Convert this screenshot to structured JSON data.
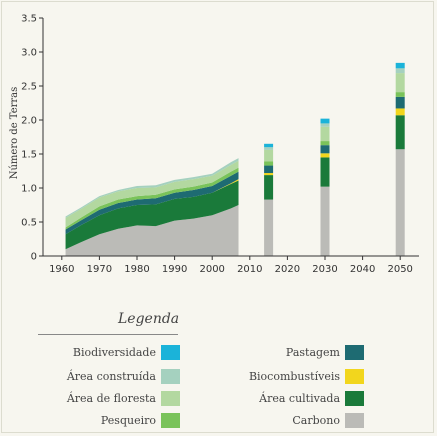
{
  "chart_data": {
    "type": "area",
    "title": "",
    "xlabel": "",
    "ylabel": "Número de Terras",
    "xlim": [
      1955,
      2055
    ],
    "ylim": [
      0,
      3.5
    ],
    "x_ticks": [
      "1960",
      "1970",
      "1980",
      "1990",
      "2000",
      "2010",
      "2020",
      "2030",
      "2040",
      "2050"
    ],
    "y_ticks": [
      "0",
      "0.5",
      "1.0",
      "1.5",
      "2.0",
      "2.5",
      "3.0",
      "3.5"
    ],
    "x": [
      1961,
      1965,
      1970,
      1975,
      1980,
      1985,
      1990,
      1995,
      2000,
      2005,
      2007
    ],
    "series": [
      {
        "name": "Carbono",
        "color": "#bbbbb7",
        "values": [
          0.1,
          0.2,
          0.32,
          0.4,
          0.45,
          0.44,
          0.52,
          0.55,
          0.6,
          0.7,
          0.75
        ]
      },
      {
        "name": "Área cultivada",
        "color": "#1a7a3a",
        "values": [
          0.22,
          0.25,
          0.28,
          0.3,
          0.3,
          0.32,
          0.32,
          0.32,
          0.33,
          0.36,
          0.36
        ]
      },
      {
        "name": "Biocombustíveis",
        "color": "#f2d61d",
        "values": [
          0,
          0,
          0,
          0,
          0,
          0,
          0,
          0,
          0,
          0.01,
          0.02
        ]
      },
      {
        "name": "Pastagem",
        "color": "#1e6b72",
        "values": [
          0.07,
          0.07,
          0.08,
          0.08,
          0.08,
          0.09,
          0.09,
          0.1,
          0.1,
          0.11,
          0.11
        ]
      },
      {
        "name": "Pesqueiro",
        "color": "#7ac35a",
        "values": [
          0.03,
          0.04,
          0.05,
          0.05,
          0.05,
          0.05,
          0.05,
          0.05,
          0.05,
          0.06,
          0.06
        ]
      },
      {
        "name": "Área de floresta",
        "color": "#b3d8a0",
        "values": [
          0.14,
          0.13,
          0.13,
          0.12,
          0.12,
          0.11,
          0.11,
          0.11,
          0.1,
          0.1,
          0.1
        ]
      },
      {
        "name": "Área construída",
        "color": "#a5d1bf",
        "values": [
          0.02,
          0.02,
          0.02,
          0.02,
          0.03,
          0.03,
          0.03,
          0.03,
          0.03,
          0.04,
          0.04
        ]
      },
      {
        "name": "Biodiversidade",
        "color": "#1bb3d9",
        "values": [
          0,
          0,
          0,
          0,
          0,
          0,
          0,
          0,
          0,
          0,
          0
        ]
      }
    ],
    "projections": [
      {
        "x": 2015,
        "values": {
          "Carbono": 0.83,
          "Área cultivada": 0.36,
          "Biocombustíveis": 0.03,
          "Pastagem": 0.11,
          "Pesqueiro": 0.06,
          "Área de floresta": 0.17,
          "Área construída": 0.04,
          "Biodiversidade": 0.05
        }
      },
      {
        "x": 2030,
        "values": {
          "Carbono": 1.02,
          "Área cultivada": 0.43,
          "Biocombustíveis": 0.06,
          "Pastagem": 0.12,
          "Pesqueiro": 0.06,
          "Área de floresta": 0.21,
          "Área construída": 0.05,
          "Biodiversidade": 0.07
        }
      },
      {
        "x": 2050,
        "values": {
          "Carbono": 1.57,
          "Área cultivada": 0.5,
          "Biocombustíveis": 0.1,
          "Pastagem": 0.17,
          "Pesqueiro": 0.07,
          "Área de floresta": 0.28,
          "Área construída": 0.07,
          "Biodiversidade": 0.08
        }
      }
    ],
    "grid": false
  },
  "legend": {
    "title": "Legenda",
    "left_column": [
      {
        "label": "Biodiversidade",
        "color": "#1bb3d9"
      },
      {
        "label": "Área construída",
        "color": "#a5d1bf"
      },
      {
        "label": "Área de floresta",
        "color": "#b3d8a0"
      },
      {
        "label": "Pesqueiro",
        "color": "#7ac35a"
      }
    ],
    "right_column": [
      {
        "label": "Pastagem",
        "color": "#1e6b72"
      },
      {
        "label": "Biocombustíveis",
        "color": "#f2d61d"
      },
      {
        "label": "Área cultivada",
        "color": "#1a7a3a"
      },
      {
        "label": "Carbono",
        "color": "#bbbbb7"
      }
    ]
  }
}
